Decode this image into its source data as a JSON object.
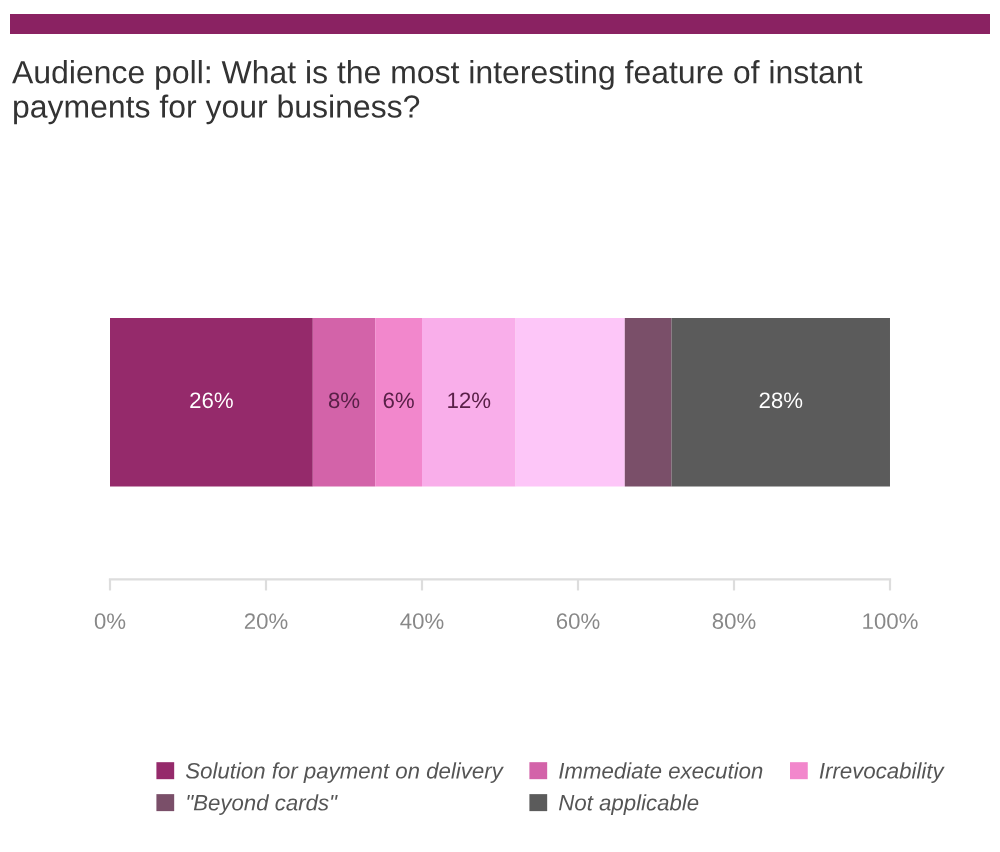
{
  "chart_data": {
    "type": "bar",
    "orientation": "horizontal",
    "stacked": true,
    "title": "Audience poll: What is the most interesting feature of instant payments for your business?",
    "categories": [
      null
    ],
    "series": [
      {
        "name": "Solution for payment on delivery",
        "color": "#952a6b",
        "values": [
          26
        ],
        "value_labels": [
          "26%"
        ]
      },
      {
        "name": "Immediate execution",
        "color": "#d363a9",
        "values": [
          8
        ],
        "value_labels": [
          "8%"
        ]
      },
      {
        "name": "Irrevocability",
        "color": "#f287cc",
        "values": [
          6
        ],
        "value_labels": [
          "6%"
        ]
      },
      {
        "color": "#f9aeea",
        "values": [
          12
        ],
        "value_labels": [
          "12%"
        ]
      },
      {
        "color": "#fdc6f8",
        "values": [
          14
        ],
        "value_labels": [
          null
        ]
      },
      {
        "name": "\"Beyond cards\"",
        "color": "#7a4f69",
        "values": [
          6
        ],
        "value_labels": [
          null
        ]
      },
      {
        "name": "Not applicable",
        "color": "#5b5b5b",
        "values": [
          28
        ],
        "value_labels": [
          "28%"
        ]
      }
    ],
    "xlim": [
      0,
      100
    ],
    "xticks": [
      {
        "value": 0,
        "label": "0%"
      },
      {
        "value": 20,
        "label": "20%"
      },
      {
        "value": 40,
        "label": "40%"
      },
      {
        "value": 60,
        "label": "60%"
      },
      {
        "value": 80,
        "label": "80%"
      },
      {
        "value": 100,
        "label": "100%"
      }
    ],
    "legend": "bottom"
  }
}
